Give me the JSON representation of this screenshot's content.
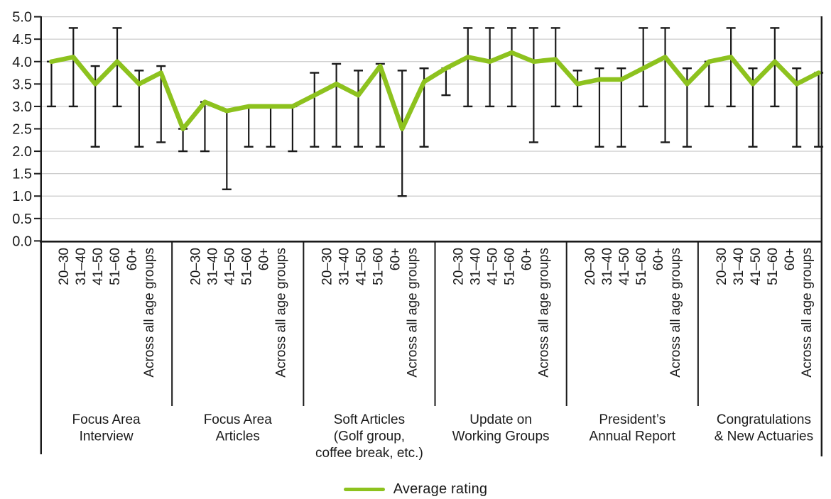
{
  "chart_data": {
    "type": "line",
    "title": "",
    "xlabel": "",
    "ylabel": "",
    "ylim": [
      0.0,
      5.0
    ],
    "ytick_step": 0.5,
    "grid": true,
    "legend_position": "bottom-center",
    "line_color": "#8dc21e",
    "axis_color": "#1a1a1a",
    "grid_color": "#c9c9c9",
    "legend": {
      "label": "Average rating"
    },
    "y_tick_labels": [
      "0.0",
      "0.5",
      "1.0",
      "1.5",
      "2.0",
      "2.5",
      "3.0",
      "3.5",
      "4.0",
      "4.5",
      "5.0"
    ],
    "age_groups": [
      "20–30",
      "31–40",
      "41–50",
      "51–60",
      "60+",
      "Across all age groups"
    ],
    "series_name": "Average rating",
    "error_bars": "whiskers with caps, black, drawn behind the line",
    "groups": [
      {
        "label": "Focus Area Interview",
        "label_lines": [
          "Focus Area",
          "Interview"
        ],
        "average": [
          4.0,
          4.1,
          3.5,
          4.0,
          3.5,
          3.75
        ],
        "whisker_low": [
          3.0,
          3.0,
          2.1,
          3.0,
          2.1,
          2.2
        ],
        "whisker_high": [
          4.0,
          4.75,
          3.9,
          4.75,
          3.8,
          3.9
        ]
      },
      {
        "label": "Focus Area Articles",
        "label_lines": [
          "Focus Area",
          "Articles"
        ],
        "average": [
          2.5,
          3.1,
          2.9,
          3.0,
          3.0,
          3.0
        ],
        "whisker_low": [
          2.0,
          2.0,
          1.15,
          2.1,
          2.1,
          2.0
        ],
        "whisker_high": [
          2.5,
          3.1,
          2.9,
          3.0,
          3.0,
          3.0
        ]
      },
      {
        "label": "Soft Articles (Golf group, coffee break, etc.)",
        "label_lines": [
          "Soft Articles",
          "(Golf group,",
          "coffee break, etc.)"
        ],
        "average": [
          3.25,
          3.5,
          3.25,
          3.9,
          2.5,
          3.55
        ],
        "whisker_low": [
          2.1,
          2.1,
          2.1,
          2.1,
          1.0,
          2.1
        ],
        "whisker_high": [
          3.75,
          3.95,
          3.8,
          3.95,
          3.8,
          3.85
        ]
      },
      {
        "label": "Update on Working Groups",
        "label_lines": [
          "Update on",
          "Working Groups"
        ],
        "average": [
          3.85,
          4.1,
          4.0,
          4.2,
          4.0,
          4.05
        ],
        "whisker_low": [
          3.25,
          3.0,
          3.0,
          3.0,
          2.2,
          3.0
        ],
        "whisker_high": [
          3.85,
          4.75,
          4.75,
          4.75,
          4.75,
          4.75
        ]
      },
      {
        "label": "President’s Annual Report",
        "label_lines": [
          "President’s",
          "Annual Report"
        ],
        "average": [
          3.5,
          3.6,
          3.6,
          3.85,
          4.1,
          3.5
        ],
        "whisker_low": [
          3.0,
          2.1,
          2.1,
          3.0,
          2.2,
          2.1
        ],
        "whisker_high": [
          3.8,
          3.85,
          3.85,
          4.75,
          4.75,
          3.85
        ]
      },
      {
        "label": "Congratulations & New Actuaries",
        "label_lines": [
          "Congratulations",
          "& New Actuaries"
        ],
        "average": [
          4.0,
          4.1,
          3.5,
          4.0,
          3.5,
          3.75
        ],
        "whisker_low": [
          3.0,
          3.0,
          2.1,
          3.0,
          2.1,
          2.1
        ],
        "whisker_high": [
          4.0,
          4.75,
          3.85,
          4.75,
          3.85,
          3.75
        ]
      }
    ]
  }
}
